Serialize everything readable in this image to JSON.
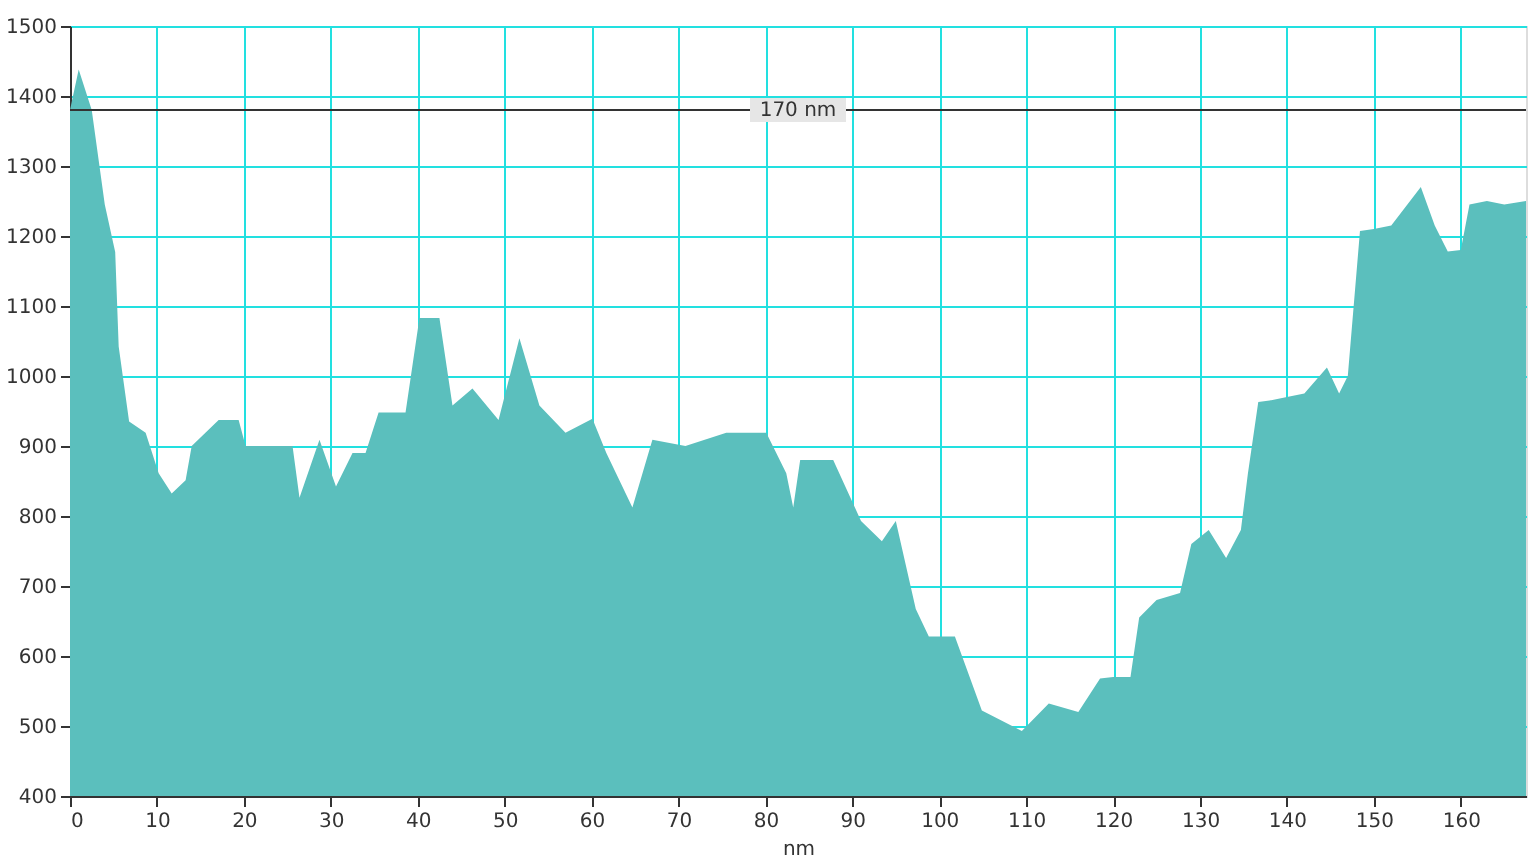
{
  "chart_data": {
    "type": "area",
    "xlabel": "nm",
    "series": [
      {
        "color": "#5bbfbd",
        "x": [
          0,
          1,
          2.5,
          4,
          5.2,
          5.6,
          6.8,
          8.7,
          10.2,
          11.7,
          13.3,
          14,
          17.1,
          19.4,
          20.2,
          25.6,
          26.4,
          28.7,
          30.6,
          32.5,
          34,
          35.5,
          38.6,
          40.2,
          42.5,
          44,
          46.3,
          49.3,
          51.7,
          54,
          57,
          60.1,
          61.7,
          64.7,
          67,
          70.8,
          75.5,
          80.1,
          82.4,
          83.2,
          84,
          87.8,
          91,
          93.4,
          95,
          97.3,
          98.8,
          101.8,
          104.9,
          109.5,
          112.6,
          116,
          118.5,
          120,
          122,
          123,
          125,
          127.7,
          129,
          131,
          133,
          134.7,
          135.5,
          136.7,
          138,
          140,
          142,
          144.6,
          146,
          147,
          148.4,
          150,
          152,
          155.4,
          157,
          158.5,
          160,
          161,
          163,
          165,
          167.5
        ],
        "values": [
          1380,
          1438,
          1380,
          1245,
          1177,
          1042,
          935,
          919,
          861,
          832,
          851,
          900,
          937,
          937,
          900,
          900,
          826,
          909,
          842,
          890,
          890,
          948,
          948,
          1083,
          1083,
          958,
          982,
          937,
          1054,
          958,
          919,
          939,
          890,
          812,
          909,
          900,
          919,
          919,
          861,
          812,
          880,
          880,
          793,
          764,
          793,
          667,
          628,
          628,
          522,
          493,
          532,
          520,
          568,
          570,
          570,
          655,
          680,
          690,
          760,
          780,
          740,
          780,
          860,
          963,
          965,
          970,
          975,
          1012,
          975,
          1000,
          1207,
          1210,
          1215,
          1270,
          1215,
          1178,
          1180,
          1245,
          1250,
          1245,
          1250
        ]
      }
    ],
    "xlim": [
      0,
      167.5
    ],
    "ylim": [
      400,
      1500
    ],
    "xticks": [
      0,
      10,
      20,
      30,
      40,
      50,
      60,
      70,
      80,
      90,
      100,
      110,
      120,
      130,
      140,
      150,
      160
    ],
    "yticks": [
      400,
      500,
      600,
      700,
      800,
      900,
      1000,
      1100,
      1200,
      1300,
      1400,
      1500
    ],
    "grid": true,
    "ref_lines": [
      {
        "axis": "y",
        "value": 1380,
        "label": "170 nm",
        "color": "#333333"
      }
    ]
  }
}
